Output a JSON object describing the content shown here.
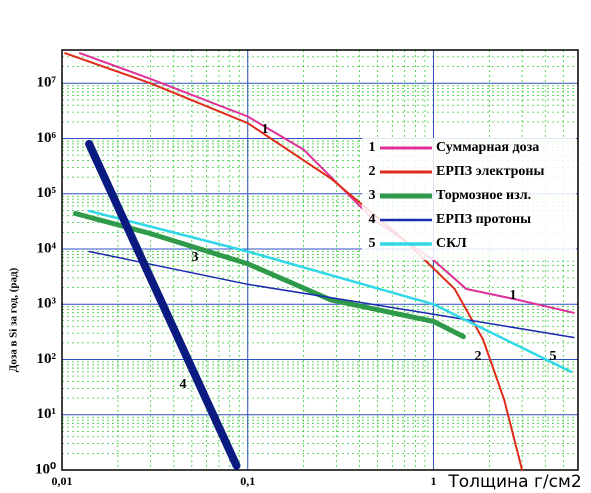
{
  "chart_data": {
    "type": "line",
    "y_axis_label": "Доза в Si за год, (рад)",
    "x_axis_label": "Толщина г/см2",
    "xscale": "log",
    "yscale": "log",
    "grid": true,
    "xlim": [
      0.01,
      6
    ],
    "ylim": [
      1,
      40000000
    ],
    "xticks": [
      {
        "value": 0.01,
        "label": "0,01"
      },
      {
        "value": 0.1,
        "label": "0,1"
      },
      1
    ],
    "yticks": [
      {
        "value": 1,
        "label": "10⁰"
      },
      {
        "value": 10,
        "label": "10¹"
      },
      {
        "value": 100,
        "label": "10²"
      },
      {
        "value": 1000,
        "label": "10³"
      },
      {
        "value": 10000,
        "label": "10⁴"
      },
      {
        "value": 100000,
        "label": "10⁵"
      },
      {
        "value": 1000000,
        "label": "10⁶"
      },
      {
        "value": 10000000,
        "label": "10⁷"
      }
    ],
    "legend_position": "upper right",
    "series": [
      {
        "number": "1",
        "name": "Суммарная доза",
        "color": "#e0309a",
        "width": 2,
        "x": [
          0.0125,
          0.03,
          0.1,
          0.2,
          0.47,
          1,
          1.5,
          2.7,
          5.7
        ],
        "values": [
          35000000,
          12000000,
          2500000,
          630000,
          35000,
          6300,
          1900,
          1250,
          700
        ]
      },
      {
        "number": "2",
        "name": "ЕРПЗ электроны",
        "color": "#e02a1a",
        "width": 2,
        "x": [
          0.0104,
          0.03,
          0.1,
          0.28,
          0.69,
          1.3,
          1.85,
          2.4,
          3.0
        ],
        "values": [
          35000000,
          10000000,
          1900000,
          190000,
          15000,
          1900,
          230,
          19,
          1
        ]
      },
      {
        "number": "3",
        "name": "Тормозное изл.",
        "color": "#2e9a4a",
        "width": 5,
        "x": [
          0.0118,
          0.03,
          0.1,
          0.28,
          1,
          1.45
        ],
        "values": [
          44000,
          19000,
          5400,
          1200,
          490,
          260
        ]
      },
      {
        "number": "4",
        "name": "ЕРПЗ протоны",
        "color": "#1a2ab0",
        "width": 1.5,
        "x": [
          0.014,
          0.1,
          1,
          5.7
        ],
        "values": [
          9000,
          2300,
          660,
          250
        ]
      },
      {
        "number": "5",
        "name": "СКЛ",
        "color": "#30d8e8",
        "width": 2.5,
        "x": [
          0.014,
          0.1,
          1,
          5.5
        ],
        "values": [
          49000,
          9000,
          1000,
          60
        ]
      },
      {
        "color": "#0a1a80",
        "width": 8,
        "x": [
          0.014,
          0.087
        ],
        "values": [
          800000,
          1.2
        ]
      }
    ],
    "annotations": [
      "1",
      "1",
      "2",
      "3",
      "4",
      "5"
    ]
  }
}
